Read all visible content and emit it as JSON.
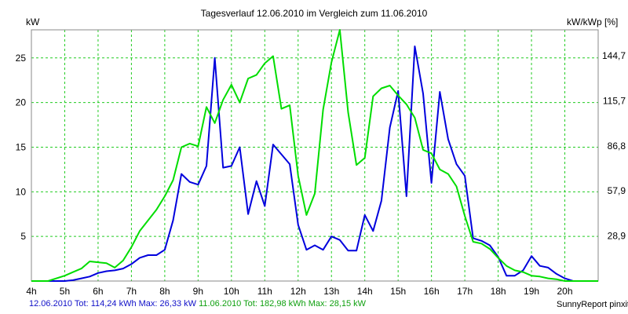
{
  "chart_data": {
    "type": "line",
    "title": "Tagesverlauf 12.06.2010 im Vergleich zum 11.06.2010",
    "ylabel": "kW",
    "ylabel_right": "kW/kWp [%]",
    "xlim": [
      4,
      21
    ],
    "ylim": [
      0,
      28.15
    ],
    "categories": [
      "4h",
      "5h",
      "6h",
      "7h",
      "8h",
      "9h",
      "10h",
      "11h",
      "12h",
      "13h",
      "14h",
      "15h",
      "16h",
      "17h",
      "18h",
      "19h",
      "20h"
    ],
    "yticks_left": [
      "5",
      "10",
      "15",
      "20",
      "25"
    ],
    "yticks_left_values": [
      5,
      10,
      15,
      20,
      25
    ],
    "yticks_right": [
      "28,9",
      "57,9",
      "86,8",
      "115,7",
      "144,7"
    ],
    "yticks_right_values": [
      5.04,
      10.1,
      15.14,
      20.18,
      25.24
    ],
    "grid": true,
    "series": [
      {
        "name": "12.06.2010",
        "color": "#0000dd",
        "x": [
          4,
          4.5,
          5,
          5.25,
          5.5,
          5.75,
          6,
          6.25,
          6.5,
          6.75,
          7,
          7.25,
          7.5,
          7.75,
          8,
          8.25,
          8.5,
          8.75,
          9,
          9.25,
          9.5,
          9.75,
          10,
          10.25,
          10.5,
          10.75,
          11,
          11.25,
          11.5,
          11.75,
          12,
          12.25,
          12.5,
          12.75,
          13,
          13.25,
          13.5,
          13.75,
          14,
          14.25,
          14.5,
          14.75,
          15,
          15.25,
          15.5,
          15.75,
          16,
          16.25,
          16.5,
          16.75,
          17,
          17.25,
          17.5,
          17.75,
          18,
          18.25,
          18.5,
          18.75,
          19,
          19.25,
          19.5,
          19.75,
          20,
          20.25,
          20.5,
          21
        ],
        "values": [
          0,
          0,
          0,
          0.1,
          0.3,
          0.5,
          0.9,
          1.1,
          1.2,
          1.4,
          1.9,
          2.6,
          2.9,
          2.9,
          3.5,
          6.8,
          12.0,
          11.1,
          10.8,
          12.9,
          25.0,
          12.7,
          12.9,
          15.0,
          7.5,
          11.2,
          8.4,
          15.3,
          14.2,
          13.1,
          6.3,
          3.5,
          4.0,
          3.5,
          5.0,
          4.6,
          3.4,
          3.4,
          7.4,
          5.6,
          9.0,
          17.2,
          21.3,
          9.5,
          26.3,
          21.0,
          11.0,
          21.2,
          15.9,
          13.1,
          11.8,
          4.8,
          4.5,
          4.0,
          2.7,
          0.6,
          0.6,
          1.2,
          2.8,
          1.7,
          1.5,
          0.8,
          0.3,
          0,
          0,
          0
        ]
      },
      {
        "name": "11.06.2010",
        "color": "#00dd00",
        "x": [
          4,
          4.5,
          5,
          5.25,
          5.5,
          5.75,
          6,
          6.25,
          6.5,
          6.75,
          7,
          7.25,
          7.5,
          7.75,
          8,
          8.25,
          8.5,
          8.75,
          9,
          9.25,
          9.5,
          9.75,
          10,
          10.25,
          10.5,
          10.75,
          11,
          11.25,
          11.5,
          11.75,
          12,
          12.25,
          12.5,
          12.75,
          13,
          13.25,
          13.5,
          13.75,
          14,
          14.25,
          14.5,
          14.75,
          15,
          15.25,
          15.5,
          15.75,
          16,
          16.25,
          16.5,
          16.75,
          17,
          17.25,
          17.5,
          17.75,
          18,
          18.25,
          18.5,
          18.75,
          19,
          19.25,
          19.5,
          19.75,
          20,
          20.25,
          20.5,
          21
        ],
        "values": [
          0,
          0,
          0.6,
          1.0,
          1.4,
          2.2,
          2.1,
          2.0,
          1.5,
          2.3,
          3.8,
          5.6,
          6.8,
          8.0,
          9.5,
          11.3,
          15.0,
          15.4,
          15.1,
          19.5,
          17.7,
          20.3,
          22.0,
          20.0,
          22.7,
          23.1,
          24.4,
          25.2,
          19.3,
          19.7,
          11.8,
          7.4,
          9.8,
          19.2,
          24.5,
          28.15,
          18.9,
          13.0,
          13.8,
          20.7,
          21.6,
          21.9,
          20.8,
          19.8,
          18.3,
          14.7,
          14.3,
          12.5,
          12.0,
          10.6,
          7.3,
          4.4,
          4.2,
          3.6,
          2.6,
          1.7,
          1.2,
          1.0,
          0.6,
          0.5,
          0.3,
          0.2,
          0,
          0,
          0,
          0
        ]
      }
    ]
  },
  "footer": {
    "blue_text": "12.06.2010 Tot: 114,24 kWh Max: 26,33 kW",
    "green_text": "11.06.2010 Tot: 182,98 kWh Max: 28,15 kW"
  },
  "credit": "SunnyReport pinxit"
}
